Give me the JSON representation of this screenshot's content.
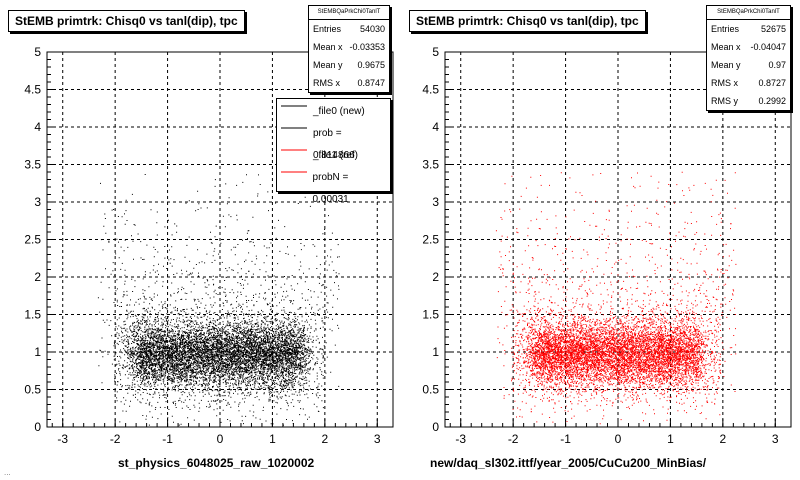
{
  "footer_text": "...",
  "chart_data": [
    {
      "type": "scatter",
      "title": "StEMB primtrk: Chisq0 vs tanl(dip), tpc",
      "xlabel": "st_physics_6048025_raw_1020002",
      "ylabel": "",
      "xlim": [
        -3.3,
        3.3
      ],
      "ylim": [
        0,
        5
      ],
      "x_ticks": [
        -3,
        -2,
        -1,
        0,
        1,
        2,
        3
      ],
      "y_ticks": [
        0,
        0.5,
        1,
        1.5,
        2,
        2.5,
        3,
        3.5,
        4,
        4.5,
        5
      ],
      "grid": true,
      "point_color": "#000000",
      "stats": {
        "name": "StEMBQaPrkChi0TanlT",
        "rows": [
          {
            "label": "Entries",
            "value": "54030"
          },
          {
            "label": "Mean x",
            "value": "-0.03353"
          },
          {
            "label": "Mean y",
            "value": "0.9675"
          },
          {
            "label": "RMS x",
            "value": "0.8747"
          }
        ]
      },
      "legend": [
        {
          "label": "_file0 (new)",
          "color": "#000000"
        },
        {
          "label": "prob = 0.814866",
          "color": "#000000"
        },
        {
          "label": "_file1 (ref)",
          "color": "#ff0000"
        },
        {
          "label": "probN = 0.00031",
          "color": "#ff0000"
        }
      ],
      "density_model": {
        "x_mean": -0.03353,
        "y_mean": 0.9675,
        "x_rms": 0.8747,
        "entries": 54030
      }
    },
    {
      "type": "scatter",
      "title": "StEMB primtrk: Chisq0 vs tanl(dip), tpc",
      "xlabel": "new/daq_sl302.ittf/year_2005/CuCu200_MinBias/",
      "ylabel": "",
      "xlim": [
        -3.3,
        3.3
      ],
      "ylim": [
        0,
        5
      ],
      "x_ticks": [
        -3,
        -2,
        -1,
        0,
        1,
        2,
        3
      ],
      "y_ticks": [
        0,
        0.5,
        1,
        1.5,
        2,
        2.5,
        3,
        3.5,
        4,
        4.5,
        5
      ],
      "grid": true,
      "point_color": "#ff0000",
      "stats": {
        "name": "StEMBQaPrkChi0TanlT",
        "rows": [
          {
            "label": "Entries",
            "value": "52675"
          },
          {
            "label": "Mean x",
            "value": "-0.04047"
          },
          {
            "label": "Mean y",
            "value": "0.97"
          },
          {
            "label": "RMS x",
            "value": "0.8727"
          },
          {
            "label": "RMS y",
            "value": "0.2992"
          }
        ]
      },
      "density_model": {
        "x_mean": -0.04047,
        "y_mean": 0.97,
        "x_rms": 0.8727,
        "y_rms": 0.2992,
        "entries": 52675
      }
    }
  ]
}
